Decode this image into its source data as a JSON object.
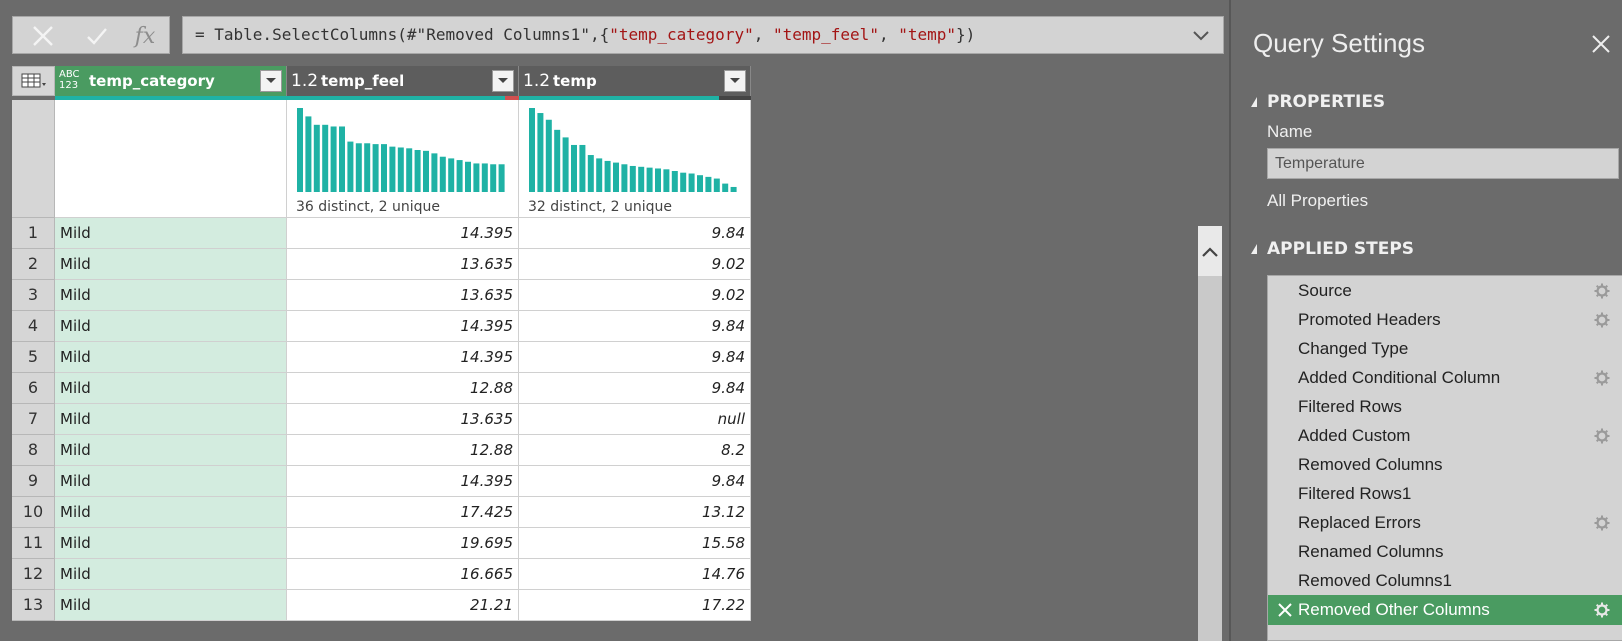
{
  "formula_bar": {
    "cancel_icon": "x-icon",
    "commit_icon": "check-icon",
    "fx_label": "fx",
    "formula_prefix": "= Table.SelectColumns(#\"Removed Columns1\",{",
    "formula_s1": "\"temp_category\"",
    "formula_sep1": ", ",
    "formula_s2": "\"temp_feel\"",
    "formula_sep2": ", ",
    "formula_s3": "\"temp\"",
    "formula_suffix": "})"
  },
  "columns": [
    {
      "type": "ABC\n123",
      "type_top": "ABC",
      "type_bottom": "123",
      "name": "temp_category",
      "profile": ""
    },
    {
      "type": "1.2",
      "name": "temp_feel",
      "profile": "36 distinct, 2 unique"
    },
    {
      "type": "1.2",
      "name": "temp",
      "profile": "32 distinct, 2 unique"
    }
  ],
  "distributions": {
    "temp_feel": [
      1.0,
      0.9,
      0.8,
      0.8,
      0.78,
      0.78,
      0.6,
      0.58,
      0.58,
      0.57,
      0.57,
      0.54,
      0.53,
      0.52,
      0.5,
      0.49,
      0.46,
      0.42,
      0.4,
      0.38,
      0.36,
      0.34,
      0.34,
      0.33,
      0.33
    ],
    "temp": [
      1.0,
      0.94,
      0.86,
      0.74,
      0.65,
      0.56,
      0.56,
      0.44,
      0.4,
      0.37,
      0.35,
      0.33,
      0.31,
      0.3,
      0.29,
      0.28,
      0.27,
      0.25,
      0.23,
      0.22,
      0.2,
      0.18,
      0.16,
      0.1,
      0.06
    ]
  },
  "rows": [
    {
      "n": "1",
      "cat": "Mild",
      "feel": "14.395",
      "temp": "9.84"
    },
    {
      "n": "2",
      "cat": "Mild",
      "feel": "13.635",
      "temp": "9.02"
    },
    {
      "n": "3",
      "cat": "Mild",
      "feel": "13.635",
      "temp": "9.02"
    },
    {
      "n": "4",
      "cat": "Mild",
      "feel": "14.395",
      "temp": "9.84"
    },
    {
      "n": "5",
      "cat": "Mild",
      "feel": "14.395",
      "temp": "9.84"
    },
    {
      "n": "6",
      "cat": "Mild",
      "feel": "12.88",
      "temp": "9.84"
    },
    {
      "n": "7",
      "cat": "Mild",
      "feel": "13.635",
      "temp": "null"
    },
    {
      "n": "8",
      "cat": "Mild",
      "feel": "12.88",
      "temp": "8.2"
    },
    {
      "n": "9",
      "cat": "Mild",
      "feel": "14.395",
      "temp": "9.84"
    },
    {
      "n": "10",
      "cat": "Mild",
      "feel": "17.425",
      "temp": "13.12"
    },
    {
      "n": "11",
      "cat": "Mild",
      "feel": "19.695",
      "temp": "15.58"
    },
    {
      "n": "12",
      "cat": "Mild",
      "feel": "16.665",
      "temp": "14.76"
    },
    {
      "n": "13",
      "cat": "Mild",
      "feel": "21.21",
      "temp": "17.22"
    }
  ],
  "panel": {
    "title": "Query Settings",
    "properties_label": "PROPERTIES",
    "name_label": "Name",
    "name_value": "Temperature",
    "all_properties": "All Properties",
    "applied_steps_label": "APPLIED STEPS",
    "steps": [
      {
        "label": "Source",
        "gear": true
      },
      {
        "label": "Promoted Headers",
        "gear": true
      },
      {
        "label": "Changed Type",
        "gear": false
      },
      {
        "label": "Added Conditional Column",
        "gear": true
      },
      {
        "label": "Filtered Rows",
        "gear": false
      },
      {
        "label": "Added Custom",
        "gear": true
      },
      {
        "label": "Removed Columns",
        "gear": false
      },
      {
        "label": "Filtered Rows1",
        "gear": false
      },
      {
        "label": "Replaced Errors",
        "gear": true
      },
      {
        "label": "Renamed Columns",
        "gear": false
      },
      {
        "label": "Removed Columns1",
        "gear": false
      },
      {
        "label": "Removed Other Columns",
        "gear": true,
        "active": true
      }
    ]
  },
  "colors": {
    "accent_green": "#4a9b61",
    "bar_teal": "#1fb2a5",
    "category_fill": "#d3ecdf",
    "string_red": "#a31515"
  }
}
